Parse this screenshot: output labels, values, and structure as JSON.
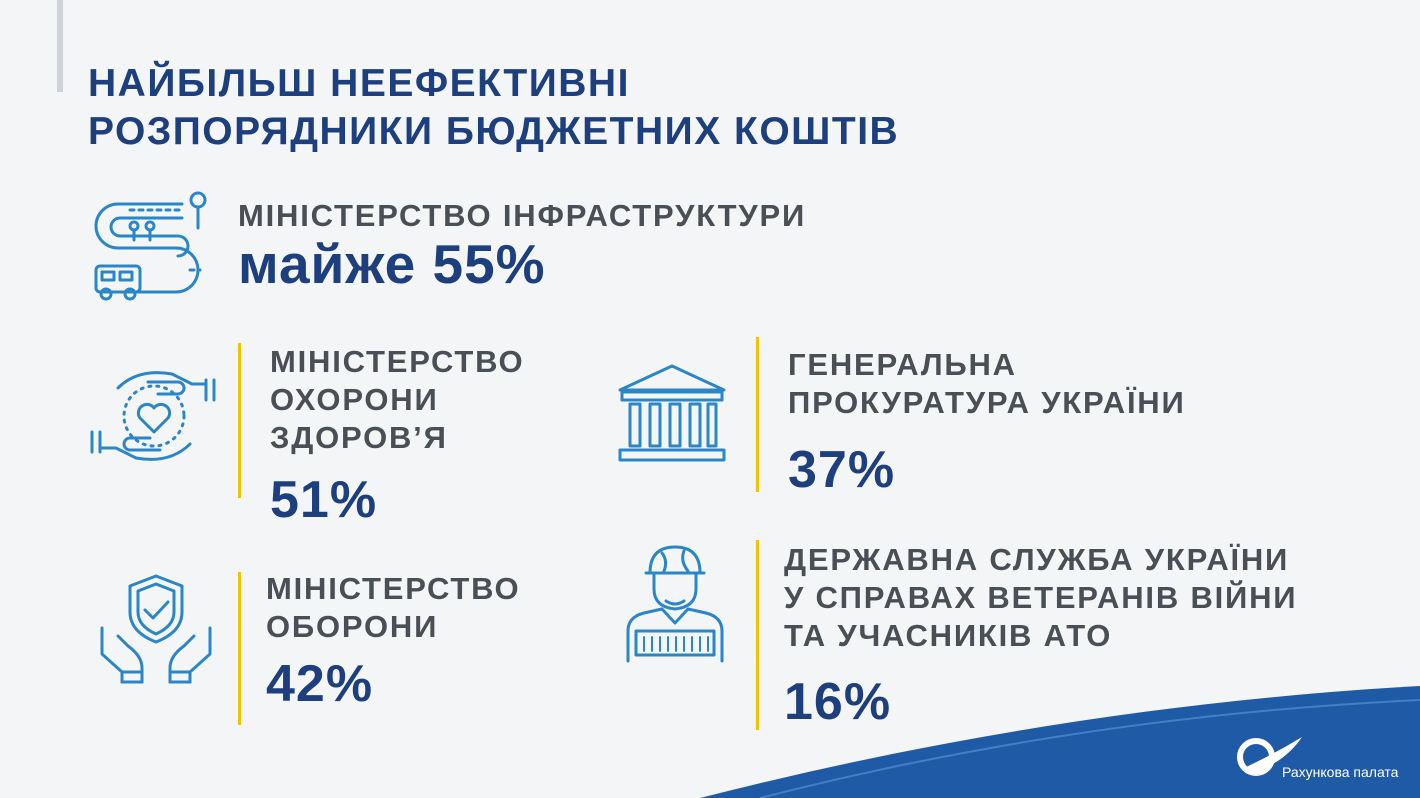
{
  "title": {
    "line1": "НАЙБІЛЬШ НЕЕФЕКТИВНІ",
    "line2": "РОЗПОРЯДНИКИ БЮДЖЕТНИХ КОШТІВ"
  },
  "items": [
    {
      "label_lines": [
        "МІНІСТЕРСТВО ІНФРАСТРУКТУРИ"
      ],
      "value": "майже 55%",
      "icon": "road-route-bus-icon",
      "percent": 55
    },
    {
      "label_lines": [
        "МІНІСТЕРСТВО",
        "ОХОРОНИ",
        "ЗДОРОВ’Я"
      ],
      "value": "51%",
      "icon": "hands-heart-icon",
      "percent": 51
    },
    {
      "label_lines": [
        "ГЕНЕРАЛЬНА",
        "ПРОКУРАТУРА УКРАЇНИ"
      ],
      "value": "37%",
      "icon": "courthouse-icon",
      "percent": 37
    },
    {
      "label_lines": [
        "МІНІСТЕРСТВО",
        "ОБОРОНИ"
      ],
      "value": "42%",
      "icon": "hands-shield-check-icon",
      "percent": 42
    },
    {
      "label_lines": [
        "ДЕРЖАВНА СЛУЖБА УКРАЇНИ",
        "У СПРАВАХ ВЕТЕРАНІВ ВІЙНИ",
        "ТА УЧАСНИКІВ АТО"
      ],
      "value": "16%",
      "icon": "veteran-soldier-icon",
      "percent": 16
    }
  ],
  "logo": {
    "text": "Рахункова палата",
    "icon": "accounting-chamber-logo-icon"
  },
  "colors": {
    "primary": "#1d3f7d",
    "icon": "#2b86c8",
    "accent": "#f2c200",
    "label": "#4a4f56",
    "wave": "#1f5aa7"
  }
}
